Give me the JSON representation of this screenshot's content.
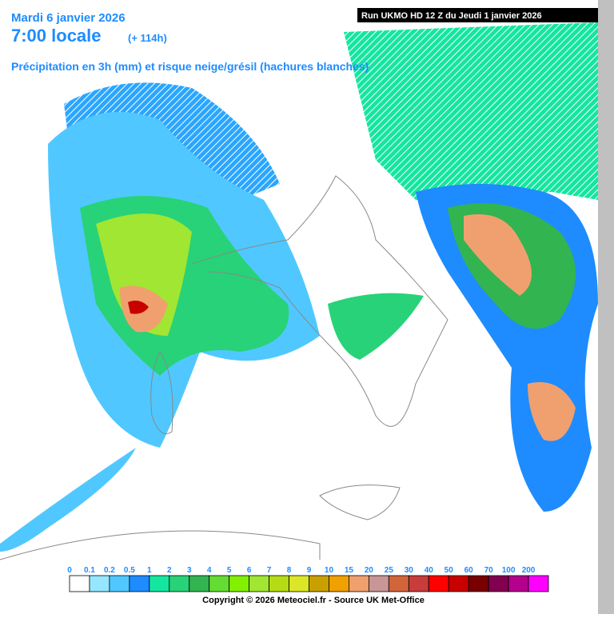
{
  "header": {
    "date": "Mardi 6 janvier 2026",
    "time": "7:00 locale",
    "lead": "(+ 114h)",
    "subtitle": "Précipitation en 3h (mm) et risque neige/grésil (hachures blanches)",
    "run": "Run UKMO HD 12 Z du Jeudi 1 janvier 2026"
  },
  "legend": [
    {
      "label": "0",
      "color": "#ffffff"
    },
    {
      "label": "0.1",
      "color": "#96e6ff"
    },
    {
      "label": "0.2",
      "color": "#50c8ff"
    },
    {
      "label": "0.5",
      "color": "#1e8cff"
    },
    {
      "label": "1",
      "color": "#14e6a0"
    },
    {
      "label": "2",
      "color": "#28d278"
    },
    {
      "label": "3",
      "color": "#32b450"
    },
    {
      "label": "4",
      "color": "#64dc32"
    },
    {
      "label": "5",
      "color": "#82f000"
    },
    {
      "label": "6",
      "color": "#a0e632"
    },
    {
      "label": "7",
      "color": "#b4dc14"
    },
    {
      "label": "8",
      "color": "#dce628"
    },
    {
      "label": "9",
      "color": "#c8a000"
    },
    {
      "label": "10",
      "color": "#f0a000"
    },
    {
      "label": "15",
      "color": "#f0a06e"
    },
    {
      "label": "20",
      "color": "#c89696"
    },
    {
      "label": "25",
      "color": "#d2643c"
    },
    {
      "label": "30",
      "color": "#c83c3c"
    },
    {
      "label": "40",
      "color": "#ff0000"
    },
    {
      "label": "50",
      "color": "#c80000"
    },
    {
      "label": "60",
      "color": "#780000"
    },
    {
      "label": "70",
      "color": "#820050"
    },
    {
      "label": "100",
      "color": "#b4008c"
    },
    {
      "label": "200",
      "color": "#ff00ff"
    }
  ],
  "footer": {
    "copyright": "Copyright © 2026 Meteociel.fr - Source UK Met-Office"
  }
}
